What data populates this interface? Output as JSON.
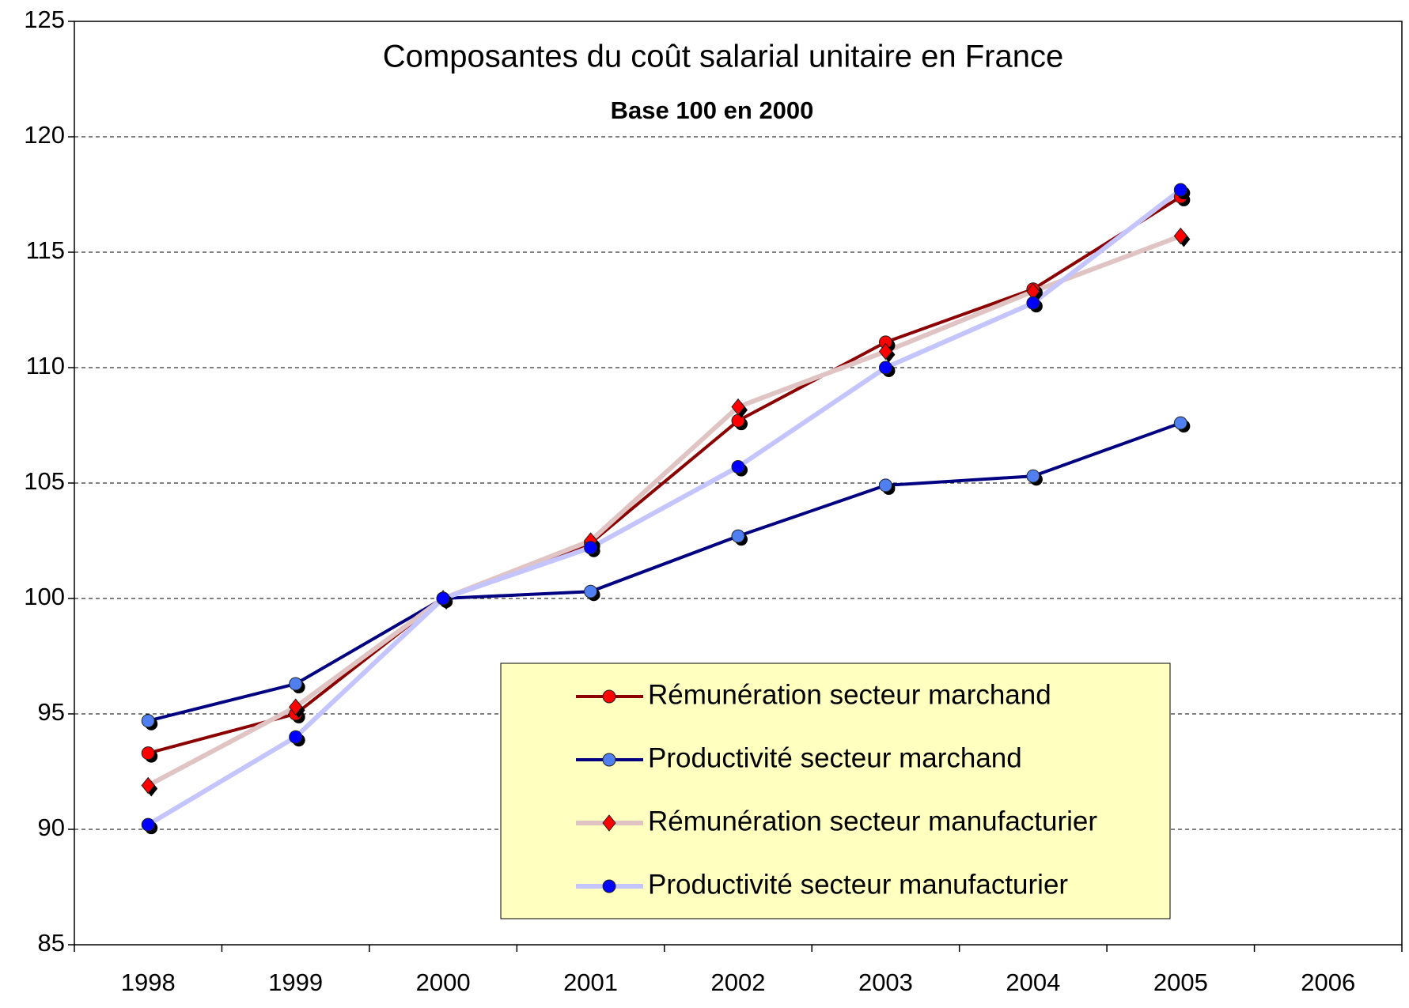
{
  "chart_data": {
    "type": "line",
    "title": "Composantes du coût salarial unitaire en France",
    "subtitle": "Base 100 en 2000",
    "categories": [
      "1998",
      "1999",
      "2000",
      "2001",
      "2002",
      "2003",
      "2004",
      "2005",
      "2006"
    ],
    "ylim": [
      85,
      125
    ],
    "yticks": [
      85,
      90,
      95,
      100,
      105,
      110,
      115,
      120,
      125
    ],
    "grid": true,
    "legend": "bottom-right",
    "series": [
      {
        "name": "Rémunération secteur marchand",
        "color": "#8b0000",
        "marker_color": "#ff0000",
        "marker": "circle",
        "values": [
          93.3,
          95.0,
          100,
          102.4,
          107.7,
          111.1,
          113.4,
          117.4,
          null
        ]
      },
      {
        "name": "Productivité secteur marchand",
        "color": "#000080",
        "marker_color": "#4f7ff0",
        "marker": "circle",
        "values": [
          94.7,
          96.3,
          100,
          100.3,
          102.7,
          104.9,
          105.3,
          107.6,
          null
        ]
      },
      {
        "name": "Rémunération secteur manufacturier",
        "color": "#e0c4c4",
        "marker_color": "#ff0000",
        "marker": "diamond",
        "values": [
          91.9,
          95.3,
          100,
          102.5,
          108.3,
          110.7,
          113.3,
          115.7,
          null
        ]
      },
      {
        "name": "Productivité secteur manufacturier",
        "color": "#c4c4ff",
        "marker_color": "#0000ff",
        "marker": "circle",
        "values": [
          90.2,
          94.0,
          100,
          102.2,
          105.7,
          110.0,
          112.8,
          117.7,
          null
        ]
      }
    ]
  }
}
